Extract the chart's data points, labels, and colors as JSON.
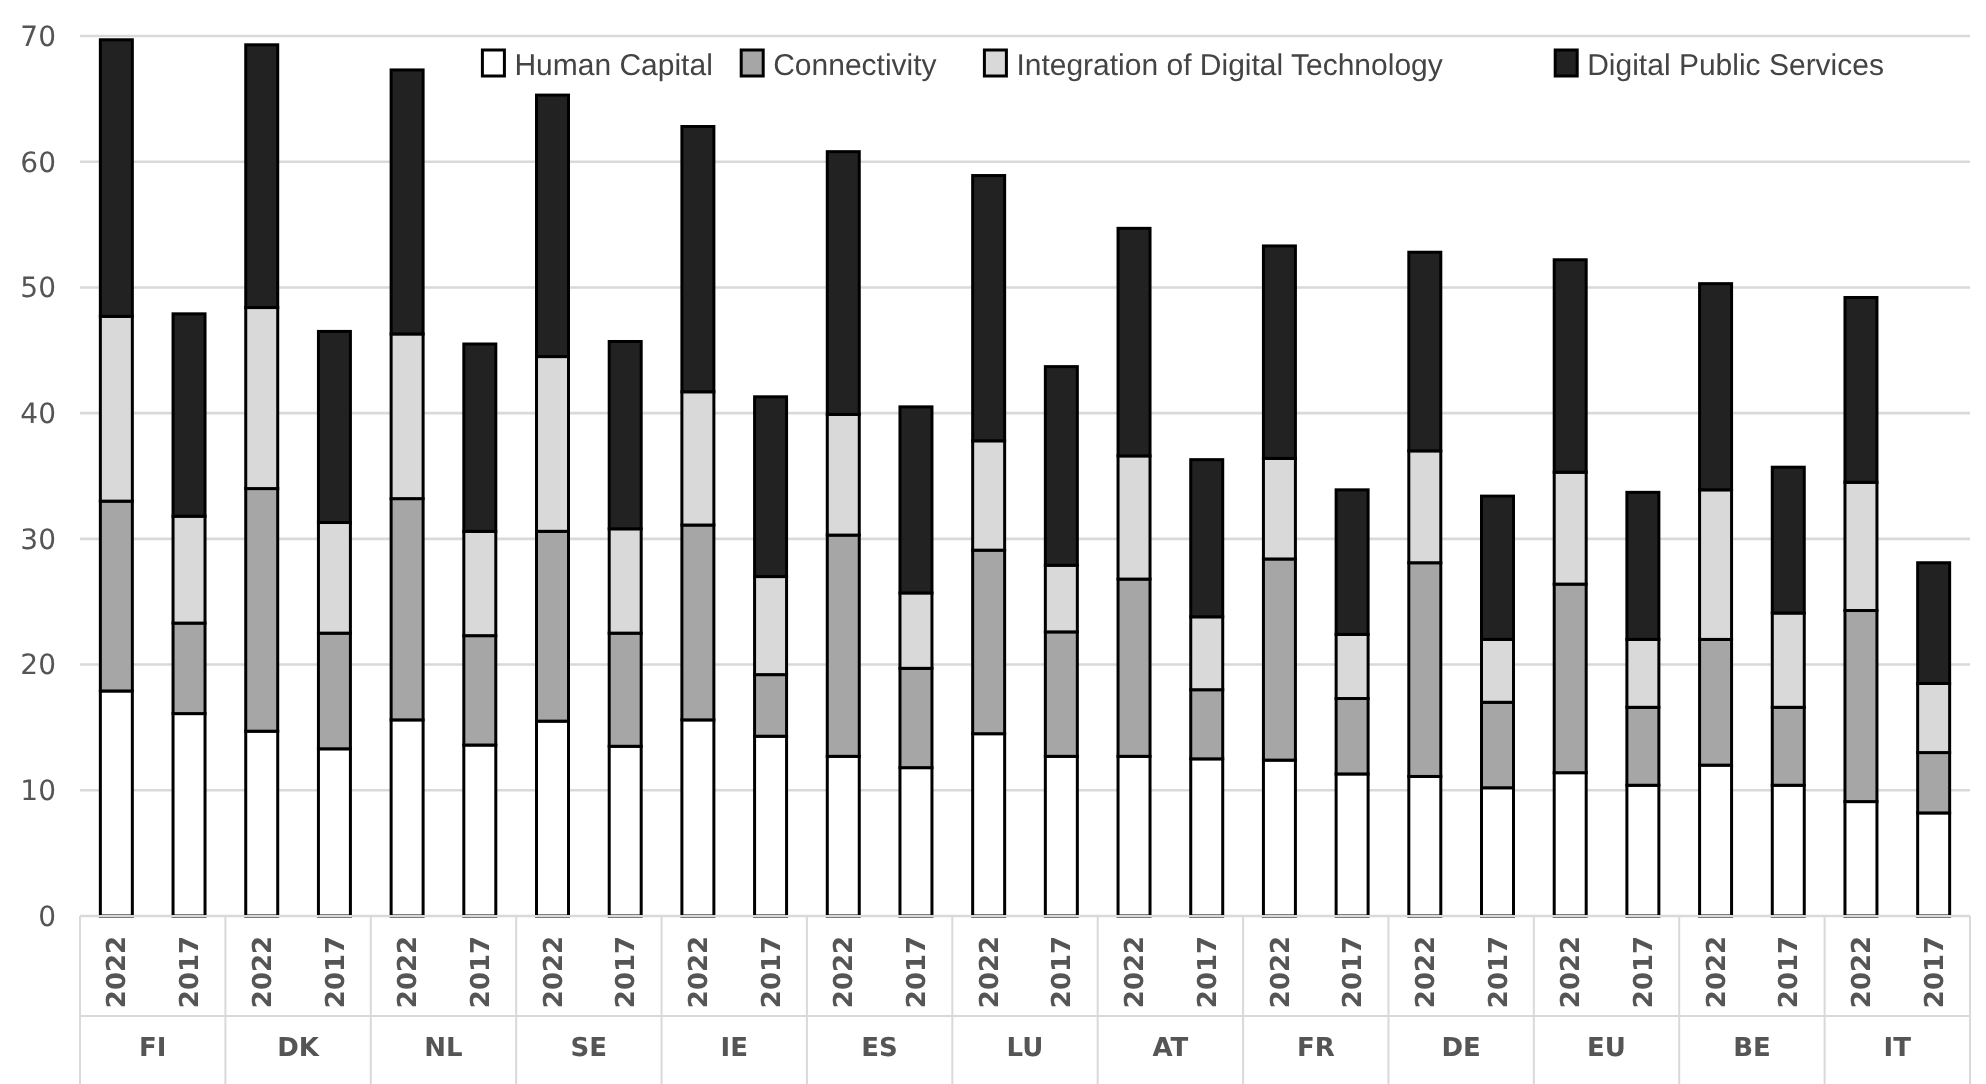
{
  "chart_data": {
    "type": "bar",
    "stacked": true,
    "categories": [
      "2022",
      "2017",
      "2022",
      "2017",
      "2022",
      "2017",
      "2022",
      "2017",
      "2022",
      "2017",
      "2022",
      "2017",
      "2022",
      "2017",
      "2022",
      "2017",
      "2022",
      "2017",
      "2022",
      "2017",
      "2022",
      "2017",
      "2022",
      "2017",
      "2022",
      "2017"
    ],
    "series": [
      {
        "name": "Human Capital",
        "color": "#ffffff",
        "values": [
          17.9,
          16.1,
          14.7,
          13.3,
          15.6,
          13.6,
          15.5,
          13.5,
          15.6,
          14.3,
          12.7,
          11.8,
          14.5,
          12.7,
          12.7,
          12.5,
          12.4,
          11.3,
          11.1,
          10.2,
          11.4,
          10.4,
          12.0,
          10.4,
          9.1,
          8.2
        ]
      },
      {
        "name": "Connectivity",
        "color": "#a6a6a6",
        "values": [
          15.1,
          7.2,
          19.3,
          9.2,
          17.6,
          8.7,
          15.1,
          9.0,
          15.5,
          4.9,
          17.6,
          7.9,
          14.6,
          9.9,
          14.1,
          5.5,
          16.0,
          6.0,
          17.0,
          6.8,
          15.0,
          6.2,
          10.0,
          6.2,
          15.2,
          4.8
        ]
      },
      {
        "name": "Integration of Digital Technology",
        "color": "#d9d9d9",
        "values": [
          14.7,
          8.5,
          14.4,
          8.8,
          13.1,
          8.3,
          13.9,
          8.3,
          10.6,
          7.8,
          9.6,
          6.0,
          8.7,
          5.3,
          9.8,
          5.8,
          8.0,
          5.1,
          8.9,
          5.0,
          8.9,
          5.4,
          11.9,
          7.5,
          10.2,
          5.5
        ]
      },
      {
        "name": "Digital Public Services",
        "color": "#222222",
        "values": [
          22.0,
          16.1,
          20.9,
          15.2,
          21.0,
          14.9,
          20.8,
          14.9,
          21.1,
          14.3,
          20.9,
          14.8,
          21.1,
          15.8,
          18.1,
          12.5,
          16.9,
          11.5,
          15.8,
          11.4,
          16.9,
          11.7,
          16.4,
          11.6,
          14.7,
          9.6
        ]
      }
    ],
    "annotations": [
      "FI",
      "DK",
      "NL",
      "SE",
      "IE",
      "ES",
      "LU",
      "AT",
      "FR",
      "DE",
      "EU",
      "BE",
      "IT"
    ],
    "ylim": [
      0,
      70
    ],
    "yticks": [
      0,
      10,
      20,
      30,
      40,
      50,
      60,
      70
    ],
    "grid": "y",
    "legend": "top right"
  }
}
